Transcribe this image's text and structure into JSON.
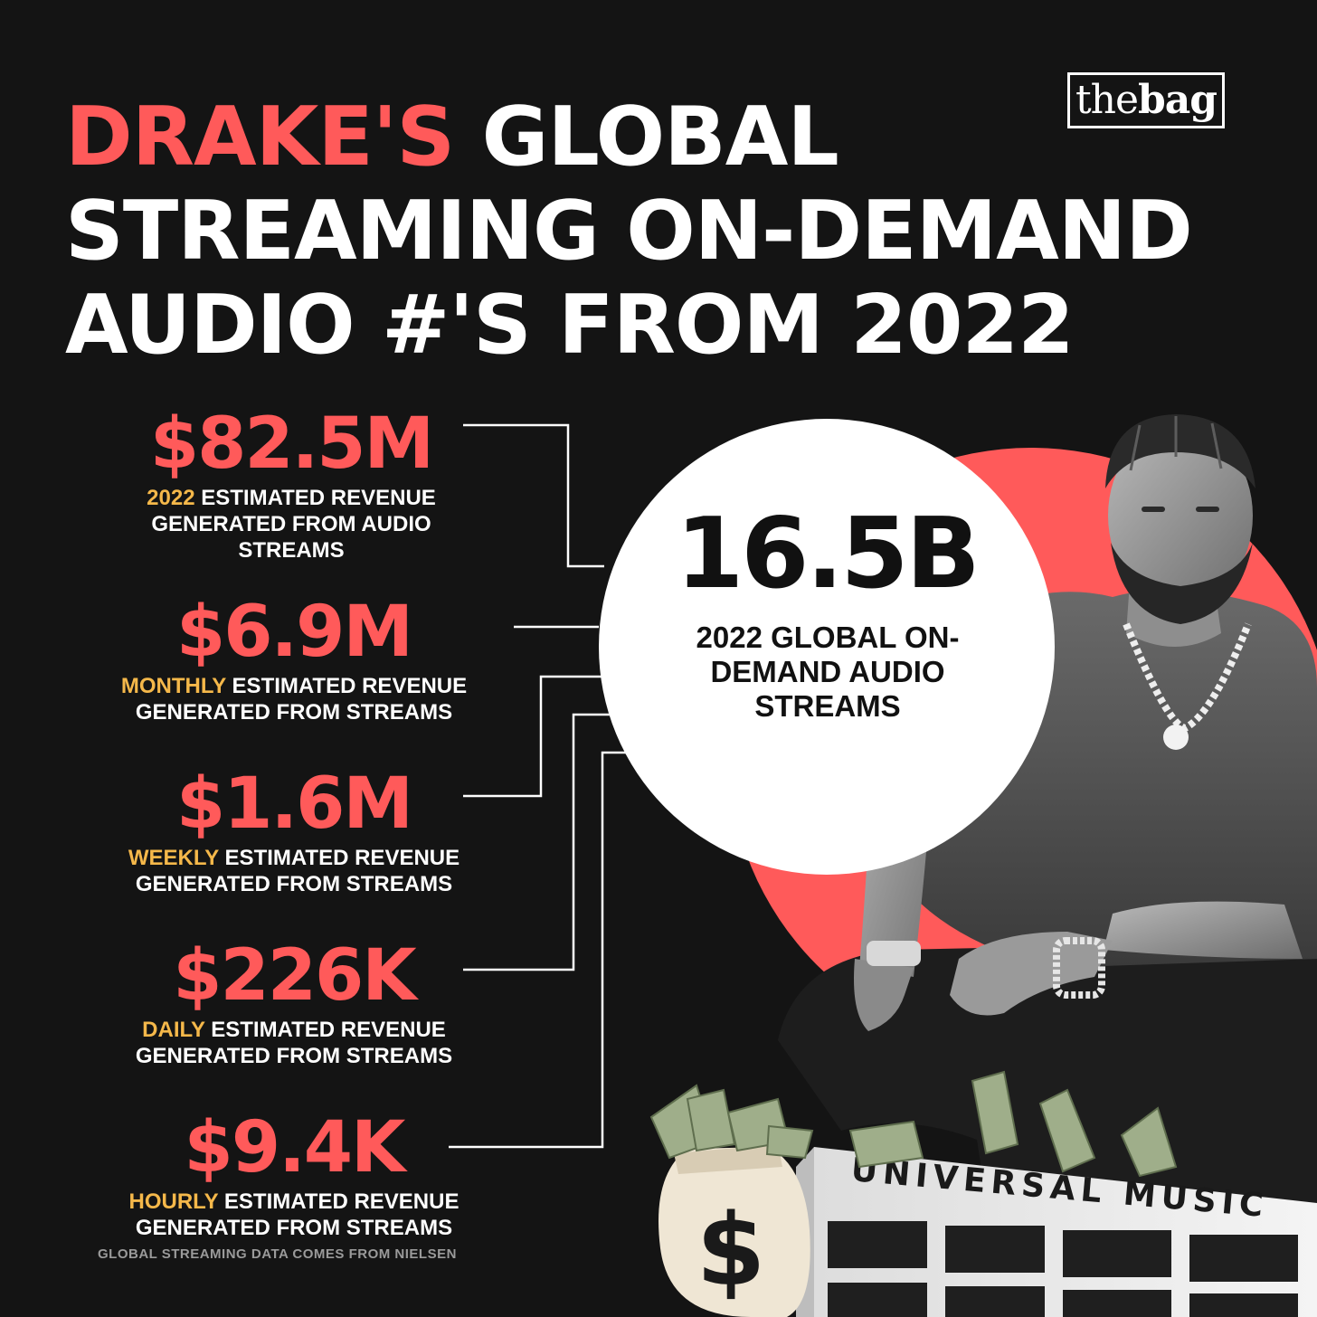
{
  "brand": {
    "logo_text_light": "the",
    "logo_text_bold": "bag"
  },
  "title": {
    "accent": "DRAKE'S",
    "line1_rest": "GLOBAL",
    "line2": "STREAMING ON-DEMAND",
    "line3": "AUDIO #'S FROM 2022"
  },
  "headline_stat": {
    "value": "16.5B",
    "label": "2022 GLOBAL ON-DEMAND AUDIO STREAMS"
  },
  "stats": [
    {
      "value": "$82.5M",
      "period": "2022",
      "text": "ESTIMATED REVENUE GENERATED FROM AUDIO STREAMS"
    },
    {
      "value": "$6.9M",
      "period": "MONTHLY",
      "text": "ESTIMATED REVENUE GENERATED FROM STREAMS"
    },
    {
      "value": "$1.6M",
      "period": "WEEKLY",
      "text": "ESTIMATED REVENUE GENERATED FROM STREAMS"
    },
    {
      "value": "$226K",
      "period": "DAILY",
      "text": "ESTIMATED REVENUE GENERATED FROM STREAMS"
    },
    {
      "value": "$9.4K",
      "period": "HOURLY",
      "text": "ESTIMATED REVENUE GENERATED FROM STREAMS"
    }
  ],
  "building_sign": "UNIVERSAL MUSIC",
  "bag_symbol": "$",
  "source_note": "GLOBAL STREAMING DATA COMES FROM NIELSEN",
  "colors": {
    "background": "#141414",
    "accent_red": "#ff5a5a",
    "accent_gold": "#f5b84a",
    "text_white": "#ffffff"
  }
}
